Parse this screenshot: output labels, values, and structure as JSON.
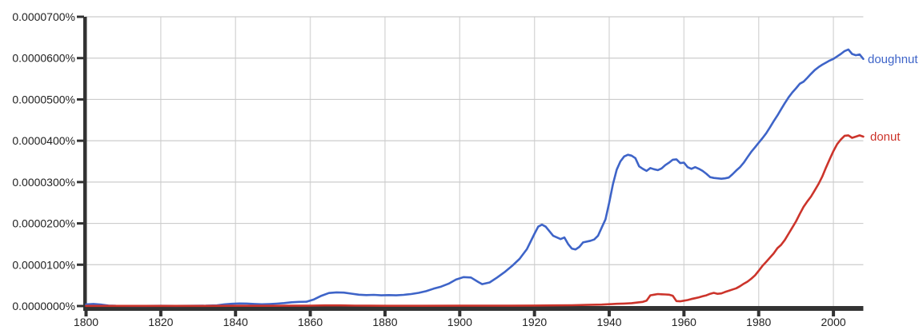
{
  "chart_data": {
    "type": "line",
    "grid": true,
    "legend": "inline-labels-at-line-end",
    "xlim": [
      1800,
      2008
    ],
    "ylim_percent": [
      "0.0000000%",
      "0.0000700%"
    ],
    "value_unit": "1e-6 percent (e.g. 62.1 = 0.0000621%)",
    "x_ticks": [
      {
        "label": "1800",
        "value": 1800
      },
      {
        "label": "1820",
        "value": 1820
      },
      {
        "label": "1840",
        "value": 1840
      },
      {
        "label": "1860",
        "value": 1860
      },
      {
        "label": "1880",
        "value": 1880
      },
      {
        "label": "1900",
        "value": 1900
      },
      {
        "label": "1920",
        "value": 1920
      },
      {
        "label": "1940",
        "value": 1940
      },
      {
        "label": "1960",
        "value": 1960
      },
      {
        "label": "1980",
        "value": 1980
      },
      {
        "label": "2000",
        "value": 2000
      }
    ],
    "y_ticks": [
      {
        "label": "0.0000700%",
        "value": 70
      },
      {
        "label": "0.0000600%",
        "value": 60
      },
      {
        "label": "0.0000500%",
        "value": 50
      },
      {
        "label": "0.0000400%",
        "value": 40
      },
      {
        "label": "0.0000300%",
        "value": 30
      },
      {
        "label": "0.0000200%",
        "value": 20
      },
      {
        "label": "0.0000100%",
        "value": 10
      },
      {
        "label": "0.0000000%",
        "value": 0
      }
    ],
    "colors": {
      "axis": "#333333",
      "tick_label": "#222222",
      "h_gridline": "#cccccc",
      "v_gridline": "#d9d9d9",
      "background": "#ffffff"
    },
    "series": [
      {
        "name": "doughnut",
        "color": "#3e64c8",
        "points": [
          [
            1800,
            0.4
          ],
          [
            1802,
            0.5
          ],
          [
            1804,
            0.35
          ],
          [
            1806,
            0.12
          ],
          [
            1808,
            0.05
          ],
          [
            1812,
            0.04
          ],
          [
            1816,
            0.04
          ],
          [
            1820,
            0.05
          ],
          [
            1824,
            0.04
          ],
          [
            1828,
            0.05
          ],
          [
            1832,
            0.08
          ],
          [
            1835,
            0.15
          ],
          [
            1837,
            0.4
          ],
          [
            1839,
            0.55
          ],
          [
            1841,
            0.62
          ],
          [
            1843,
            0.6
          ],
          [
            1845,
            0.5
          ],
          [
            1847,
            0.42
          ],
          [
            1849,
            0.48
          ],
          [
            1851,
            0.58
          ],
          [
            1853,
            0.72
          ],
          [
            1855,
            0.9
          ],
          [
            1857,
            1.0
          ],
          [
            1859,
            1.05
          ],
          [
            1861,
            1.6
          ],
          [
            1863,
            2.5
          ],
          [
            1865,
            3.15
          ],
          [
            1867,
            3.3
          ],
          [
            1869,
            3.25
          ],
          [
            1871,
            3.0
          ],
          [
            1873,
            2.75
          ],
          [
            1875,
            2.65
          ],
          [
            1877,
            2.7
          ],
          [
            1879,
            2.6
          ],
          [
            1881,
            2.65
          ],
          [
            1883,
            2.6
          ],
          [
            1885,
            2.7
          ],
          [
            1887,
            2.9
          ],
          [
            1889,
            3.2
          ],
          [
            1891,
            3.6
          ],
          [
            1893,
            4.2
          ],
          [
            1895,
            4.7
          ],
          [
            1897,
            5.4
          ],
          [
            1899,
            6.4
          ],
          [
            1901,
            7.0
          ],
          [
            1903,
            6.9
          ],
          [
            1905,
            5.8
          ],
          [
            1906,
            5.3
          ],
          [
            1908,
            5.7
          ],
          [
            1910,
            6.9
          ],
          [
            1912,
            8.2
          ],
          [
            1914,
            9.7
          ],
          [
            1916,
            11.4
          ],
          [
            1918,
            13.8
          ],
          [
            1920,
            17.5
          ],
          [
            1921,
            19.2
          ],
          [
            1922,
            19.7
          ],
          [
            1923,
            19.2
          ],
          [
            1925,
            17.0
          ],
          [
            1927,
            16.2
          ],
          [
            1928,
            16.6
          ],
          [
            1929,
            15.0
          ],
          [
            1930,
            13.9
          ],
          [
            1931,
            13.7
          ],
          [
            1932,
            14.3
          ],
          [
            1933,
            15.4
          ],
          [
            1935,
            15.8
          ],
          [
            1936,
            16.1
          ],
          [
            1937,
            17.0
          ],
          [
            1938,
            19.0
          ],
          [
            1939,
            21.0
          ],
          [
            1940,
            25.0
          ],
          [
            1941,
            29.5
          ],
          [
            1942,
            33.0
          ],
          [
            1943,
            35.0
          ],
          [
            1944,
            36.2
          ],
          [
            1945,
            36.6
          ],
          [
            1946,
            36.4
          ],
          [
            1947,
            35.8
          ],
          [
            1948,
            33.8
          ],
          [
            1949,
            33.2
          ],
          [
            1950,
            32.7
          ],
          [
            1951,
            33.4
          ],
          [
            1952,
            33.1
          ],
          [
            1953,
            32.9
          ],
          [
            1954,
            33.3
          ],
          [
            1955,
            34.1
          ],
          [
            1956,
            34.7
          ],
          [
            1957,
            35.4
          ],
          [
            1958,
            35.5
          ],
          [
            1959,
            34.6
          ],
          [
            1960,
            34.7
          ],
          [
            1961,
            33.6
          ],
          [
            1962,
            33.2
          ],
          [
            1963,
            33.6
          ],
          [
            1964,
            33.2
          ],
          [
            1965,
            32.7
          ],
          [
            1966,
            32.0
          ],
          [
            1967,
            31.2
          ],
          [
            1968,
            31.0
          ],
          [
            1969,
            30.9
          ],
          [
            1970,
            30.8
          ],
          [
            1971,
            30.9
          ],
          [
            1972,
            31.1
          ],
          [
            1973,
            31.9
          ],
          [
            1974,
            32.8
          ],
          [
            1975,
            33.6
          ],
          [
            1976,
            34.7
          ],
          [
            1977,
            36.0
          ],
          [
            1978,
            37.3
          ],
          [
            1979,
            38.4
          ],
          [
            1980,
            39.5
          ],
          [
            1981,
            40.6
          ],
          [
            1982,
            41.8
          ],
          [
            1983,
            43.2
          ],
          [
            1984,
            44.7
          ],
          [
            1985,
            46.1
          ],
          [
            1986,
            47.6
          ],
          [
            1987,
            49.1
          ],
          [
            1988,
            50.5
          ],
          [
            1989,
            51.7
          ],
          [
            1990,
            52.7
          ],
          [
            1991,
            53.8
          ],
          [
            1992,
            54.3
          ],
          [
            1993,
            55.2
          ],
          [
            1994,
            56.2
          ],
          [
            1995,
            57.1
          ],
          [
            1996,
            57.8
          ],
          [
            1997,
            58.4
          ],
          [
            1998,
            58.9
          ],
          [
            1999,
            59.4
          ],
          [
            2000,
            59.8
          ],
          [
            2001,
            60.4
          ],
          [
            2002,
            61.0
          ],
          [
            2003,
            61.7
          ],
          [
            2004,
            62.1
          ],
          [
            2005,
            61.0
          ],
          [
            2006,
            60.7
          ],
          [
            2007,
            60.9
          ],
          [
            2008,
            59.8
          ]
        ]
      },
      {
        "name": "donut",
        "color": "#cc342b",
        "points": [
          [
            1800,
            0.03
          ],
          [
            1810,
            0.03
          ],
          [
            1820,
            0.03
          ],
          [
            1830,
            0.04
          ],
          [
            1840,
            0.05
          ],
          [
            1850,
            0.06
          ],
          [
            1855,
            0.07
          ],
          [
            1860,
            0.1
          ],
          [
            1864,
            0.15
          ],
          [
            1868,
            0.15
          ],
          [
            1872,
            0.1
          ],
          [
            1876,
            0.07
          ],
          [
            1880,
            0.06
          ],
          [
            1890,
            0.06
          ],
          [
            1900,
            0.07
          ],
          [
            1910,
            0.08
          ],
          [
            1920,
            0.12
          ],
          [
            1925,
            0.15
          ],
          [
            1930,
            0.2
          ],
          [
            1934,
            0.28
          ],
          [
            1938,
            0.35
          ],
          [
            1940,
            0.45
          ],
          [
            1942,
            0.55
          ],
          [
            1944,
            0.6
          ],
          [
            1946,
            0.7
          ],
          [
            1948,
            0.9
          ],
          [
            1949,
            1.0
          ],
          [
            1950,
            1.3
          ],
          [
            1951,
            2.6
          ],
          [
            1952,
            2.75
          ],
          [
            1953,
            2.9
          ],
          [
            1954,
            2.85
          ],
          [
            1955,
            2.8
          ],
          [
            1956,
            2.75
          ],
          [
            1957,
            2.5
          ],
          [
            1958,
            1.2
          ],
          [
            1959,
            1.15
          ],
          [
            1960,
            1.3
          ],
          [
            1961,
            1.45
          ],
          [
            1962,
            1.7
          ],
          [
            1963,
            1.9
          ],
          [
            1964,
            2.1
          ],
          [
            1965,
            2.35
          ],
          [
            1966,
            2.6
          ],
          [
            1967,
            2.95
          ],
          [
            1968,
            3.2
          ],
          [
            1969,
            2.95
          ],
          [
            1970,
            3.05
          ],
          [
            1971,
            3.4
          ],
          [
            1972,
            3.7
          ],
          [
            1973,
            4.0
          ],
          [
            1974,
            4.3
          ],
          [
            1975,
            4.8
          ],
          [
            1976,
            5.4
          ],
          [
            1977,
            5.9
          ],
          [
            1978,
            6.6
          ],
          [
            1979,
            7.4
          ],
          [
            1980,
            8.5
          ],
          [
            1981,
            9.7
          ],
          [
            1982,
            10.7
          ],
          [
            1983,
            11.7
          ],
          [
            1984,
            12.7
          ],
          [
            1985,
            14.0
          ],
          [
            1986,
            14.8
          ],
          [
            1987,
            16.0
          ],
          [
            1988,
            17.5
          ],
          [
            1989,
            19.0
          ],
          [
            1990,
            20.5
          ],
          [
            1991,
            22.3
          ],
          [
            1992,
            24.0
          ],
          [
            1993,
            25.3
          ],
          [
            1994,
            26.5
          ],
          [
            1995,
            28.0
          ],
          [
            1996,
            29.5
          ],
          [
            1997,
            31.3
          ],
          [
            1998,
            33.5
          ],
          [
            1999,
            35.5
          ],
          [
            2000,
            37.5
          ],
          [
            2001,
            39.2
          ],
          [
            2002,
            40.3
          ],
          [
            2003,
            41.2
          ],
          [
            2004,
            41.3
          ],
          [
            2005,
            40.7
          ],
          [
            2006,
            41.0
          ],
          [
            2007,
            41.3
          ],
          [
            2008,
            41.0
          ]
        ]
      }
    ]
  }
}
